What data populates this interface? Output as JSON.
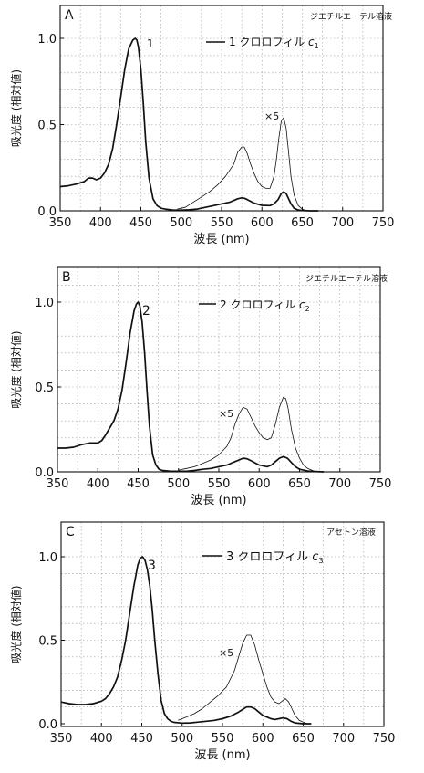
{
  "chart_data": [
    {
      "type": "line",
      "panel_label": "A",
      "solvent": "ジエチルエーテル溶液",
      "xlabel": "波長 (nm)",
      "ylabel": "吸光度 (相対値)",
      "xlim": [
        350,
        750
      ],
      "ylim": [
        0,
        1.1
      ],
      "xticks": [
        350,
        400,
        450,
        500,
        550,
        600,
        650,
        700,
        750
      ],
      "yticks": [
        0.0,
        0.5,
        1.0
      ],
      "ytick_labels": [
        "0.0",
        "0.5",
        "1.0"
      ],
      "grid": "dotted",
      "legend": {
        "number": "1",
        "text": "クロロフィル ",
        "symbol": "c",
        "subscript": "1"
      },
      "peak_label": "1",
      "scale_label": "×5",
      "series": [
        {
          "role": "main",
          "x": [
            350,
            360,
            370,
            380,
            385,
            390,
            395,
            400,
            405,
            410,
            415,
            420,
            425,
            430,
            435,
            440,
            443,
            445,
            447,
            450,
            453,
            456,
            460,
            465,
            470,
            475,
            480,
            490,
            500,
            510,
            520,
            530,
            540,
            550,
            560,
            565,
            570,
            575,
            578,
            582,
            586,
            590,
            600,
            610,
            615,
            620,
            624,
            627,
            630,
            633,
            636,
            640,
            645,
            650,
            660,
            670
          ],
          "y": [
            0.14,
            0.145,
            0.155,
            0.17,
            0.19,
            0.19,
            0.18,
            0.19,
            0.22,
            0.27,
            0.36,
            0.5,
            0.66,
            0.82,
            0.94,
            0.99,
            1.0,
            0.99,
            0.95,
            0.82,
            0.62,
            0.4,
            0.19,
            0.07,
            0.03,
            0.015,
            0.01,
            0.004,
            0.004,
            0.006,
            0.01,
            0.02,
            0.03,
            0.04,
            0.05,
            0.06,
            0.07,
            0.075,
            0.073,
            0.065,
            0.055,
            0.045,
            0.032,
            0.03,
            0.04,
            0.065,
            0.1,
            0.11,
            0.1,
            0.07,
            0.04,
            0.015,
            0.005,
            0.002,
            0.0,
            0.0
          ]
        },
        {
          "role": "x5",
          "x": [
            495,
            505,
            515,
            525,
            535,
            545,
            555,
            565,
            570,
            575,
            578,
            582,
            586,
            590,
            595,
            600,
            605,
            610,
            615,
            618,
            621,
            624,
            627,
            630,
            633,
            636,
            640,
            645,
            650,
            655
          ],
          "y": [
            0.01,
            0.02,
            0.05,
            0.08,
            0.11,
            0.15,
            0.2,
            0.27,
            0.34,
            0.37,
            0.37,
            0.33,
            0.27,
            0.22,
            0.17,
            0.14,
            0.13,
            0.13,
            0.2,
            0.3,
            0.42,
            0.52,
            0.54,
            0.48,
            0.34,
            0.2,
            0.09,
            0.03,
            0.01,
            0.0
          ]
        }
      ]
    },
    {
      "type": "line",
      "panel_label": "B",
      "solvent": "ジエチルエーテル溶液",
      "xlabel": "波長 (nm)",
      "ylabel": "吸光度 (相対値)",
      "xlim": [
        350,
        750
      ],
      "ylim": [
        0,
        1.2
      ],
      "xticks": [
        350,
        400,
        450,
        500,
        550,
        600,
        650,
        700,
        750
      ],
      "yticks": [
        0.0,
        0.5,
        1.0
      ],
      "ytick_labels": [
        "0.0",
        "0.5",
        "1.0"
      ],
      "grid": "dotted",
      "legend": {
        "number": "2",
        "text": "クロロフィル ",
        "symbol": "c",
        "subscript": "2"
      },
      "peak_label": "2",
      "scale_label": "×5",
      "series": [
        {
          "role": "main",
          "x": [
            350,
            360,
            370,
            380,
            390,
            400,
            405,
            410,
            415,
            420,
            425,
            430,
            435,
            440,
            445,
            448,
            450,
            452,
            455,
            458,
            461,
            464,
            468,
            472,
            476,
            480,
            490,
            500,
            510,
            520,
            530,
            540,
            550,
            560,
            570,
            575,
            580,
            585,
            590,
            600,
            610,
            615,
            620,
            625,
            630,
            635,
            640,
            645,
            650,
            660,
            670,
            680
          ],
          "y": [
            0.14,
            0.14,
            0.145,
            0.16,
            0.17,
            0.17,
            0.185,
            0.22,
            0.26,
            0.3,
            0.37,
            0.48,
            0.64,
            0.82,
            0.95,
            0.99,
            1.0,
            0.98,
            0.88,
            0.7,
            0.48,
            0.27,
            0.1,
            0.04,
            0.015,
            0.008,
            0.004,
            0.003,
            0.004,
            0.008,
            0.015,
            0.02,
            0.03,
            0.04,
            0.06,
            0.07,
            0.08,
            0.077,
            0.065,
            0.04,
            0.03,
            0.04,
            0.06,
            0.08,
            0.09,
            0.08,
            0.055,
            0.03,
            0.015,
            0.005,
            0.002,
            0.0
          ]
        },
        {
          "role": "x5",
          "x": [
            500,
            510,
            520,
            530,
            540,
            550,
            560,
            565,
            570,
            575,
            580,
            585,
            590,
            595,
            600,
            605,
            610,
            615,
            620,
            625,
            630,
            633,
            636,
            640,
            645,
            650,
            655,
            660,
            665,
            670
          ],
          "y": [
            0.01,
            0.02,
            0.03,
            0.05,
            0.07,
            0.1,
            0.15,
            0.2,
            0.28,
            0.34,
            0.38,
            0.37,
            0.32,
            0.27,
            0.23,
            0.2,
            0.19,
            0.2,
            0.28,
            0.38,
            0.44,
            0.43,
            0.37,
            0.25,
            0.14,
            0.08,
            0.04,
            0.02,
            0.01,
            0.0
          ]
        }
      ]
    },
    {
      "type": "line",
      "panel_label": "C",
      "solvent": "アセトン溶液",
      "xlabel": "波長 (nm)",
      "ylabel": "吸光度 (相対値)",
      "xlim": [
        350,
        750
      ],
      "ylim": [
        0,
        1.1
      ],
      "xticks": [
        350,
        400,
        450,
        500,
        550,
        600,
        650,
        700,
        750
      ],
      "yticks": [
        0.0,
        0.5,
        1.0
      ],
      "ytick_labels": [
        "0.0",
        "0.5",
        "1.0"
      ],
      "grid": "dotted",
      "legend": {
        "number": "3",
        "text": "クロロフィル ",
        "symbol": "c",
        "subscript": "3"
      },
      "peak_label": "3",
      "scale_label": "×5",
      "series": [
        {
          "role": "main",
          "x": [
            350,
            360,
            370,
            380,
            390,
            400,
            405,
            410,
            415,
            420,
            425,
            430,
            435,
            440,
            445,
            448,
            451,
            454,
            457,
            460,
            463,
            466,
            470,
            474,
            478,
            482,
            486,
            490,
            500,
            510,
            520,
            530,
            540,
            550,
            560,
            570,
            575,
            580,
            585,
            590,
            595,
            600,
            605,
            610,
            615,
            620,
            625,
            630,
            635,
            640,
            650,
            660
          ],
          "y": [
            0.13,
            0.12,
            0.115,
            0.115,
            0.12,
            0.135,
            0.15,
            0.18,
            0.22,
            0.28,
            0.38,
            0.5,
            0.66,
            0.82,
            0.95,
            0.99,
            1.0,
            0.98,
            0.92,
            0.82,
            0.68,
            0.5,
            0.3,
            0.14,
            0.06,
            0.03,
            0.015,
            0.008,
            0.004,
            0.005,
            0.01,
            0.015,
            0.02,
            0.03,
            0.045,
            0.07,
            0.085,
            0.1,
            0.1,
            0.09,
            0.07,
            0.05,
            0.04,
            0.03,
            0.025,
            0.03,
            0.035,
            0.03,
            0.015,
            0.005,
            0.0,
            0.0
          ]
        },
        {
          "role": "x5",
          "x": [
            495,
            505,
            515,
            525,
            535,
            545,
            555,
            565,
            570,
            575,
            580,
            585,
            590,
            595,
            600,
            605,
            610,
            615,
            620,
            625,
            628,
            632,
            636,
            640,
            645,
            650,
            655
          ],
          "y": [
            0.02,
            0.04,
            0.06,
            0.09,
            0.13,
            0.17,
            0.22,
            0.32,
            0.4,
            0.48,
            0.53,
            0.53,
            0.47,
            0.38,
            0.3,
            0.22,
            0.16,
            0.13,
            0.12,
            0.14,
            0.15,
            0.13,
            0.09,
            0.05,
            0.02,
            0.01,
            0.0
          ]
        }
      ]
    }
  ]
}
